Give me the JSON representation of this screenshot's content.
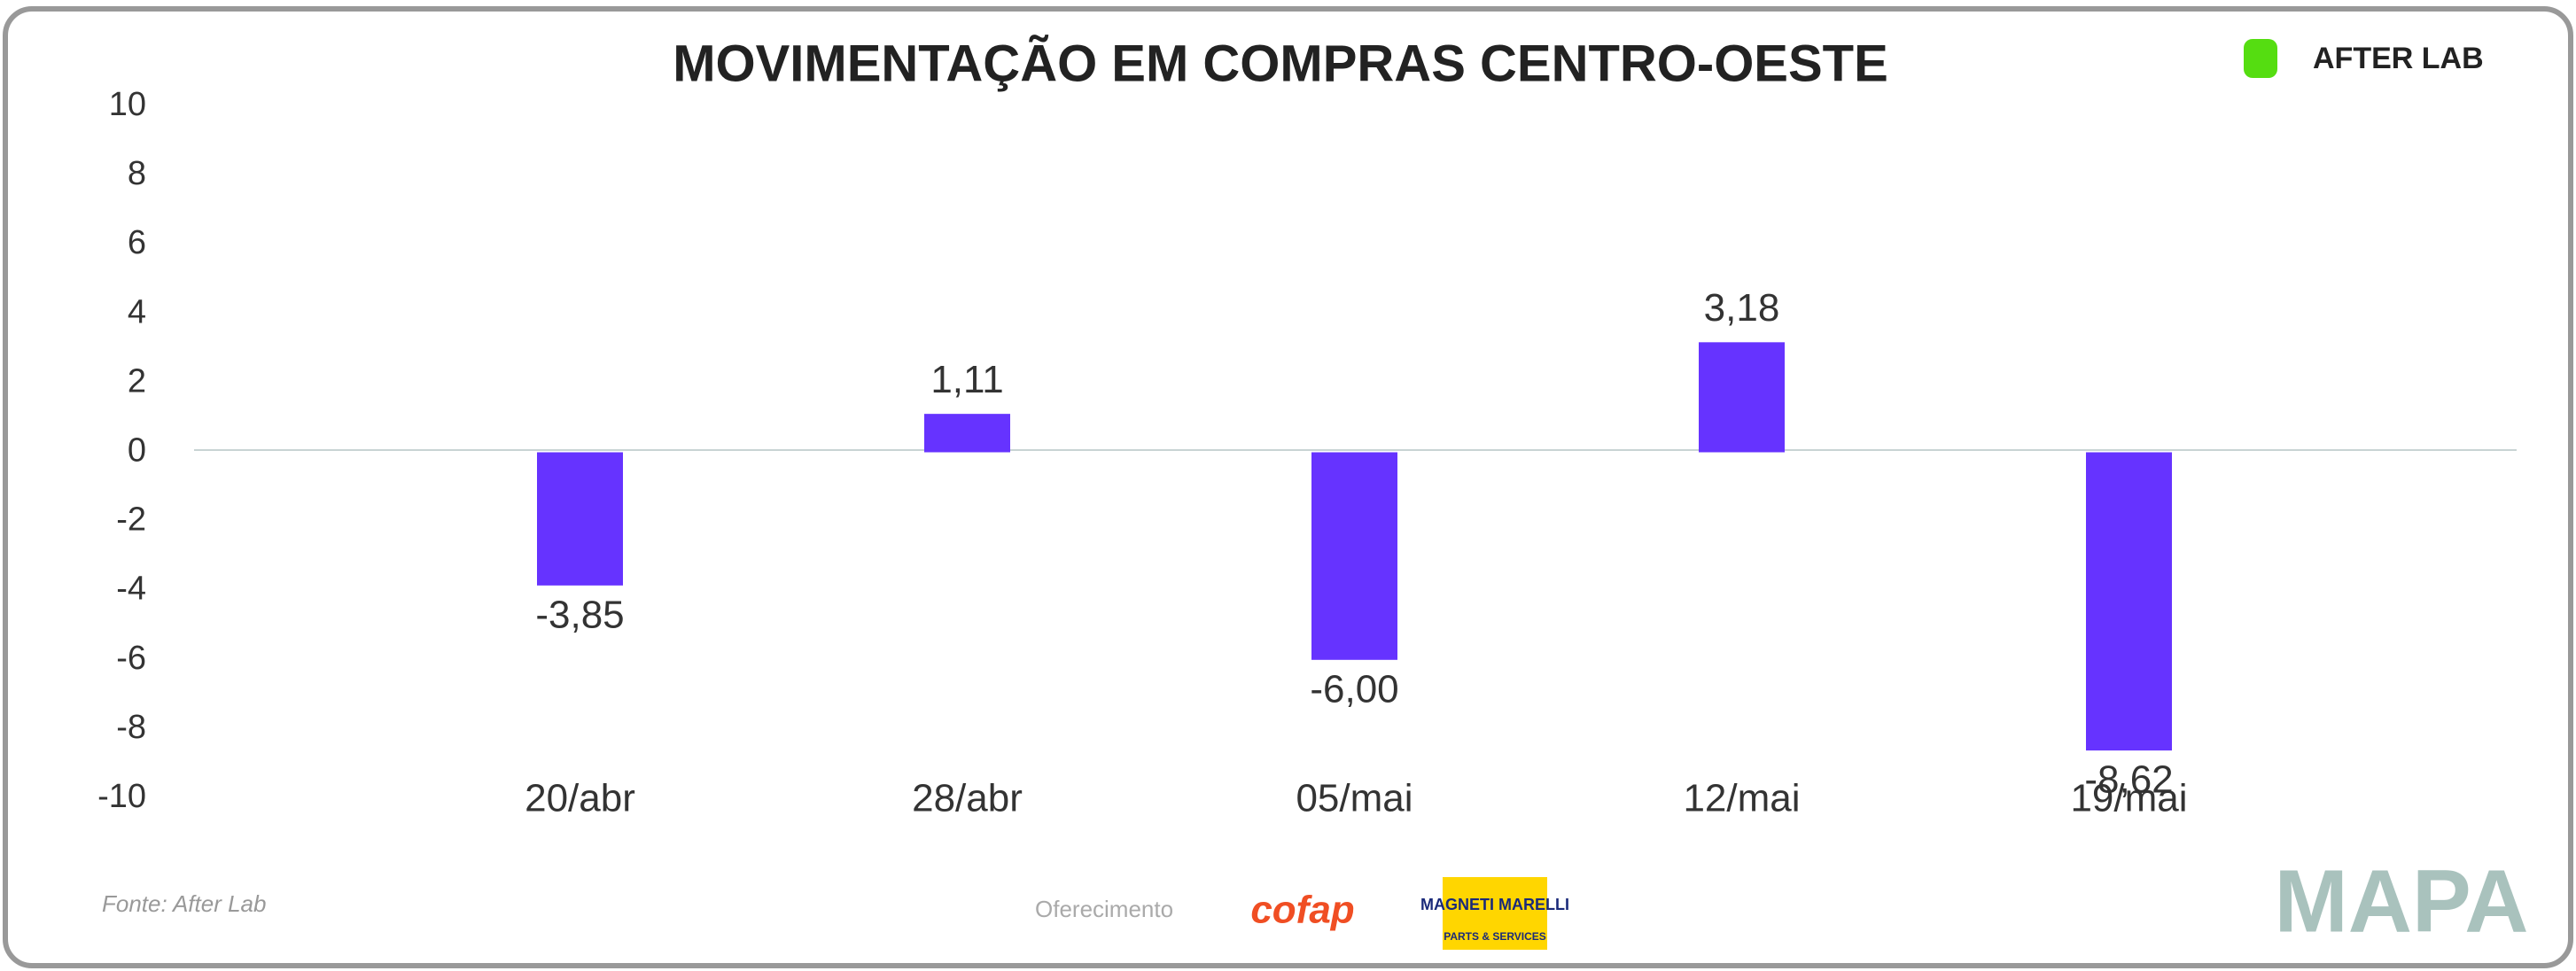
{
  "chart_data": {
    "type": "bar",
    "title": "MOVIMENTAÇÃO EM COMPRAS CENTRO-OESTE",
    "categories": [
      "20/abr",
      "28/abr",
      "05/mai",
      "12/mai",
      "19/mai"
    ],
    "values": [
      -3.85,
      1.11,
      -6.0,
      3.18,
      -8.62
    ],
    "value_labels": [
      "-3,85",
      "1,11",
      "-6,00",
      "3,18",
      "-8,62"
    ],
    "color": "#6633ff",
    "ylim": [
      -10,
      10
    ],
    "yticks": [
      -10,
      -8,
      -6,
      -4,
      -2,
      0,
      2,
      4,
      6,
      8,
      10
    ],
    "grid": false,
    "source": "Fonte: After Lab",
    "sponsor_label": "Oferecimento",
    "logos": [
      "AFTER LAB",
      "cofap",
      "MAGNETI MARELLI",
      "PARTS & SERVICES",
      "MAPA"
    ]
  }
}
